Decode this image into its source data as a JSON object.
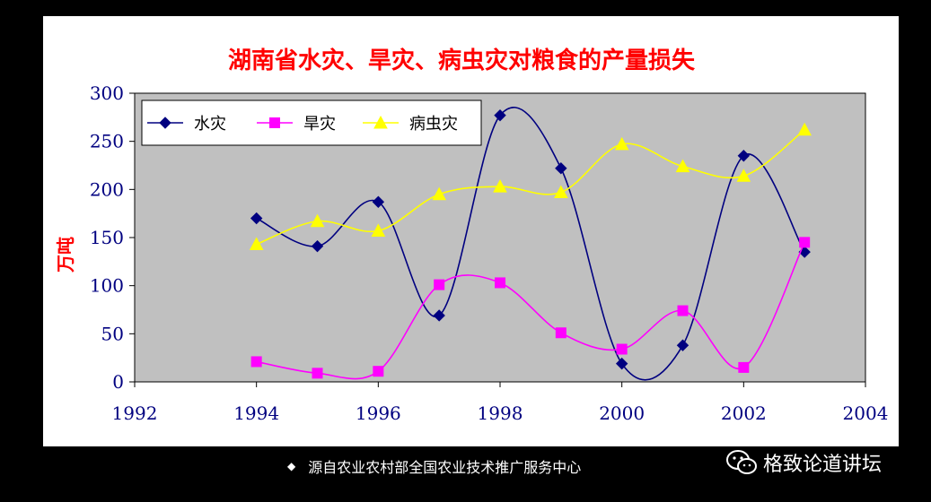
{
  "colors": {
    "plot_bg": "#C0C0C0",
    "title": "#FF0000",
    "axis_text": "#000080"
  },
  "chart_data": {
    "type": "line",
    "title": "湖南省水灾、旱灾、病虫灾对粮食的产量损失",
    "ylabel": "万吨",
    "xlabel": "",
    "xlim": [
      1992,
      2004
    ],
    "ylim": [
      0,
      300
    ],
    "x_ticks": [
      1992,
      1994,
      1996,
      1998,
      2000,
      2002,
      2004
    ],
    "y_ticks": [
      0,
      50,
      100,
      150,
      200,
      250,
      300
    ],
    "grid": false,
    "smooth": true,
    "legend_position": "top-left",
    "x": [
      1994,
      1995,
      1996,
      1997,
      1998,
      1999,
      2000,
      2001,
      2002,
      2003
    ],
    "series": [
      {
        "name": "水灾",
        "color": "#000080",
        "marker": "diamond",
        "values": [
          170,
          141,
          187,
          69,
          277,
          222,
          19,
          38,
          235,
          135
        ]
      },
      {
        "name": "旱灾",
        "color": "#FF00FF",
        "marker": "square",
        "values": [
          21,
          9,
          11,
          101,
          103,
          51,
          34,
          74,
          15,
          145
        ]
      },
      {
        "name": "病虫灾",
        "color": "#FFFF00",
        "marker": "triangle",
        "values": [
          143,
          167,
          157,
          195,
          203,
          197,
          247,
          224,
          214,
          262
        ]
      }
    ]
  },
  "footer": {
    "bullet": "◆",
    "source": "源自农业农村部全国农业技术推广服务中心"
  },
  "watermark": {
    "icon": "wechat-icon",
    "text": "格致论道讲坛"
  }
}
